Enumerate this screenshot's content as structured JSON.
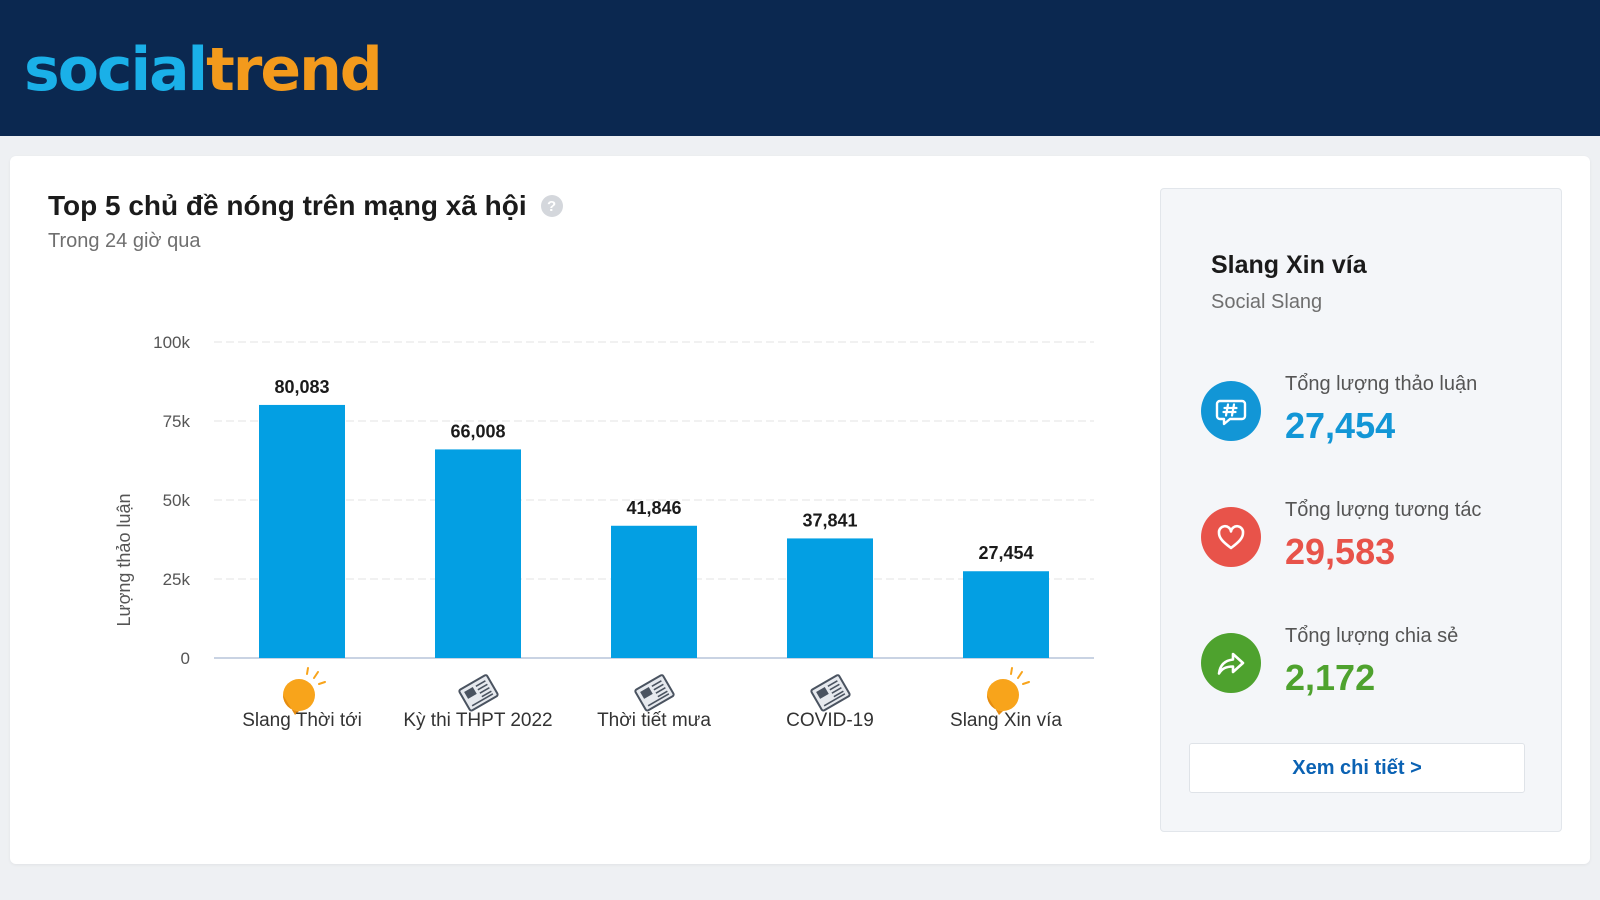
{
  "logo": {
    "part1": "social",
    "part2": "trend"
  },
  "header": {
    "title": "Top 5 chủ đề nóng trên mạng xã hội",
    "help_symbol": "?",
    "subtitle": "Trong 24 giờ qua"
  },
  "chart_data": {
    "type": "bar",
    "categories": [
      "Slang Thời tới",
      "Kỳ thi THPT 2022",
      "Thời tiết mưa",
      "COVID-19",
      "Slang Xin vía"
    ],
    "category_icons": [
      "sun-icon",
      "newspaper-icon",
      "newspaper-icon",
      "newspaper-icon",
      "sun-icon"
    ],
    "values": [
      80083,
      66008,
      41846,
      37841,
      27454
    ],
    "value_labels": [
      "80,083",
      "66,008",
      "41,846",
      "37,841",
      "27,454"
    ],
    "ylabel": "Lượng thảo luận",
    "ylim": [
      0,
      100000
    ],
    "yticks": [
      0,
      25000,
      50000,
      75000,
      100000
    ],
    "ytick_labels": [
      "0",
      "25k",
      "50k",
      "75k",
      "100k"
    ],
    "grid": true,
    "bar_color": "#039fe3"
  },
  "panel": {
    "title": "Slang Xin vía",
    "subtitle": "Social Slang",
    "stats": [
      {
        "label": "Tổng lượng thảo luận",
        "value": "27,454",
        "color": "#1296d6",
        "icon": "hashtag-chat-icon"
      },
      {
        "label": "Tổng lượng tương tác",
        "value": "29,583",
        "color": "#e8534a",
        "icon": "heart-icon"
      },
      {
        "label": "Tổng lượng chia sẻ",
        "value": "2,172",
        "color": "#4ea22e",
        "icon": "share-icon"
      }
    ],
    "button_label": "Xem chi tiết >"
  }
}
